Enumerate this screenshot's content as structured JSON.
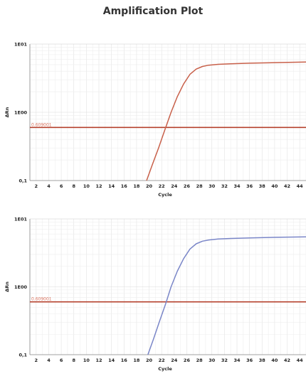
{
  "page": {
    "title": "Amplification Plot"
  },
  "chart_data": [
    {
      "type": "line",
      "xlabel": "Cycle",
      "ylabel": "ΔRn",
      "xlim": [
        1,
        45
      ],
      "ylim": [
        0.1,
        10
      ],
      "yscale": "log",
      "xticks": [
        "2",
        "4",
        "6",
        "8",
        "10",
        "12",
        "14",
        "16",
        "18",
        "20",
        "22",
        "24",
        "26",
        "28",
        "30",
        "32",
        "34",
        "36",
        "38",
        "40",
        "42",
        "44"
      ],
      "yticks": [
        {
          "value": 0.1,
          "label": "0,1"
        },
        {
          "value": 1,
          "label": "1E00"
        },
        {
          "value": 10,
          "label": "1E01"
        }
      ],
      "grid": true,
      "threshold": {
        "value": 0.6,
        "label": "0.609001",
        "color": "#b5402c"
      },
      "series": [
        {
          "color": "#c8604a",
          "x": [
            19.6,
            20.5,
            21.5,
            22.5,
            23.5,
            24.5,
            25.5,
            26.5,
            27.5,
            28.5,
            29.5,
            31,
            33,
            36,
            40,
            45
          ],
          "y": [
            0.1,
            0.17,
            0.3,
            0.55,
            1.0,
            1.7,
            2.6,
            3.6,
            4.3,
            4.7,
            4.9,
            5.05,
            5.15,
            5.25,
            5.35,
            5.45
          ]
        }
      ]
    },
    {
      "type": "line",
      "xlabel": "Cycle",
      "ylabel": "ΔRn",
      "xlim": [
        1,
        45
      ],
      "ylim": [
        0.1,
        10
      ],
      "yscale": "log",
      "xticks": [
        "2",
        "4",
        "6",
        "8",
        "10",
        "12",
        "14",
        "16",
        "18",
        "20",
        "22",
        "24",
        "26",
        "28",
        "30",
        "32",
        "34",
        "36",
        "38",
        "40",
        "42",
        "44"
      ],
      "yticks": [
        {
          "value": 0.1,
          "label": "0,1"
        },
        {
          "value": 1,
          "label": "1E00"
        },
        {
          "value": 10,
          "label": "1E01"
        }
      ],
      "grid": true,
      "threshold": {
        "value": 0.6,
        "label": "0.609001",
        "color": "#b5402c"
      },
      "series": [
        {
          "color": "#7a86c8",
          "x": [
            19.8,
            20.7,
            21.6,
            22.6,
            23.5,
            24.5,
            25.5,
            26.5,
            27.5,
            28.5,
            29.5,
            31,
            33,
            36,
            40,
            45
          ],
          "y": [
            0.1,
            0.17,
            0.3,
            0.55,
            1.0,
            1.7,
            2.6,
            3.6,
            4.3,
            4.7,
            4.9,
            5.05,
            5.15,
            5.25,
            5.35,
            5.45
          ]
        }
      ]
    }
  ]
}
